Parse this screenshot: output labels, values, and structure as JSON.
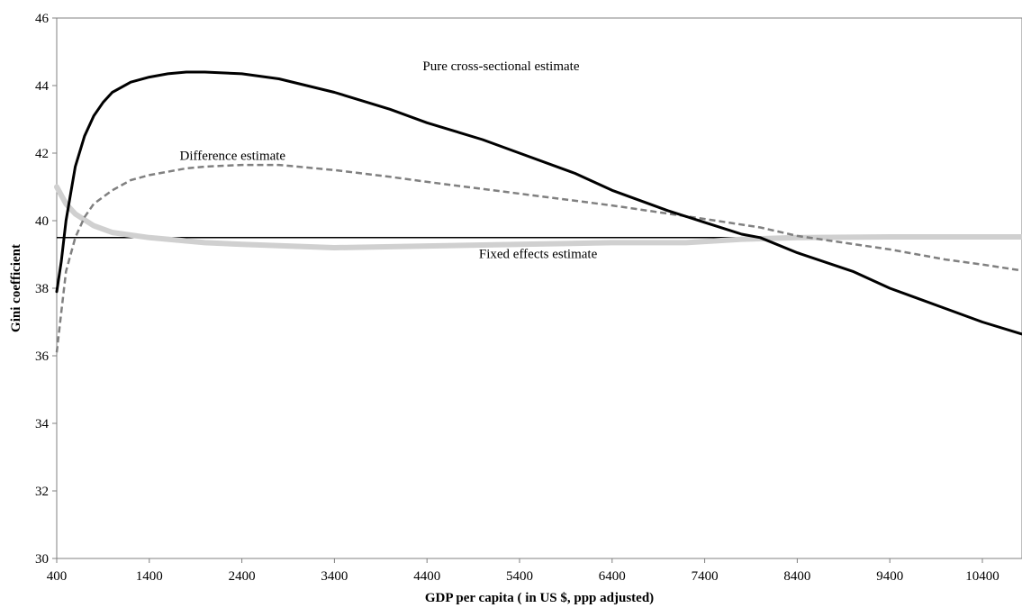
{
  "chart_data": {
    "type": "line",
    "xlabel": "GDP per capita ( in US $, ppp adjusted)",
    "ylabel": "Gini coefficient",
    "xlim": [
      400,
      11000
    ],
    "ylim": [
      30,
      46
    ],
    "x_ticks": [
      400,
      1400,
      2400,
      3400,
      4400,
      5400,
      6400,
      7400,
      8400,
      9400,
      10400
    ],
    "y_ticks": [
      30,
      32,
      34,
      36,
      38,
      40,
      42,
      44,
      46
    ],
    "grid": false,
    "legend": "none",
    "reference_line": {
      "y": 39.5
    },
    "series": [
      {
        "name": "Pure cross-sectional estimate",
        "color": "#000000",
        "style": "solid",
        "points": [
          [
            400,
            37.9
          ],
          [
            450,
            38.8
          ],
          [
            500,
            40.0
          ],
          [
            600,
            41.6
          ],
          [
            700,
            42.5
          ],
          [
            800,
            43.1
          ],
          [
            900,
            43.5
          ],
          [
            1000,
            43.8
          ],
          [
            1200,
            44.1
          ],
          [
            1400,
            44.25
          ],
          [
            1600,
            44.35
          ],
          [
            1800,
            44.4
          ],
          [
            2000,
            44.4
          ],
          [
            2400,
            44.35
          ],
          [
            2800,
            44.2
          ],
          [
            3400,
            43.8
          ],
          [
            4000,
            43.3
          ],
          [
            4400,
            42.9
          ],
          [
            5000,
            42.4
          ],
          [
            5400,
            42.0
          ],
          [
            6000,
            41.4
          ],
          [
            6400,
            40.9
          ],
          [
            7000,
            40.3
          ],
          [
            7400,
            39.95
          ],
          [
            7800,
            39.6
          ],
          [
            8000,
            39.5
          ],
          [
            8400,
            39.05
          ],
          [
            9000,
            38.5
          ],
          [
            9400,
            38.0
          ],
          [
            10000,
            37.4
          ],
          [
            10400,
            37.0
          ],
          [
            11000,
            36.5
          ]
        ]
      },
      {
        "name": "Difference estimate",
        "color": "#808080",
        "style": "dashed",
        "points": [
          [
            400,
            36.1
          ],
          [
            450,
            37.3
          ],
          [
            500,
            38.5
          ],
          [
            600,
            39.5
          ],
          [
            700,
            40.1
          ],
          [
            800,
            40.5
          ],
          [
            1000,
            40.9
          ],
          [
            1200,
            41.2
          ],
          [
            1400,
            41.35
          ],
          [
            1800,
            41.55
          ],
          [
            2000,
            41.6
          ],
          [
            2400,
            41.65
          ],
          [
            2800,
            41.65
          ],
          [
            3400,
            41.5
          ],
          [
            4000,
            41.3
          ],
          [
            4400,
            41.15
          ],
          [
            5400,
            40.8
          ],
          [
            6400,
            40.45
          ],
          [
            7400,
            40.05
          ],
          [
            8000,
            39.8
          ],
          [
            8400,
            39.55
          ],
          [
            9400,
            39.15
          ],
          [
            10000,
            38.85
          ],
          [
            10400,
            38.7
          ],
          [
            11000,
            38.45
          ]
        ]
      },
      {
        "name": "Fixed effects estimate",
        "color": "#d0d0d0",
        "style": "solid-thick",
        "points": [
          [
            400,
            41.0
          ],
          [
            500,
            40.5
          ],
          [
            600,
            40.2
          ],
          [
            800,
            39.85
          ],
          [
            1000,
            39.65
          ],
          [
            1400,
            39.5
          ],
          [
            2000,
            39.35
          ],
          [
            2400,
            39.3
          ],
          [
            3400,
            39.2
          ],
          [
            4400,
            39.25
          ],
          [
            5400,
            39.3
          ],
          [
            6400,
            39.35
          ],
          [
            7200,
            39.35
          ],
          [
            7800,
            39.45
          ],
          [
            8400,
            39.5
          ],
          [
            9400,
            39.52
          ],
          [
            10400,
            39.52
          ],
          [
            11000,
            39.52
          ]
        ]
      }
    ],
    "annotations": [
      {
        "text": "Pure cross-sectional estimate",
        "x": 5200,
        "y": 44.45
      },
      {
        "text": "Difference estimate",
        "x": 2300,
        "y": 41.8
      },
      {
        "text": "Fixed effects estimate",
        "x": 5600,
        "y": 38.9
      }
    ]
  }
}
